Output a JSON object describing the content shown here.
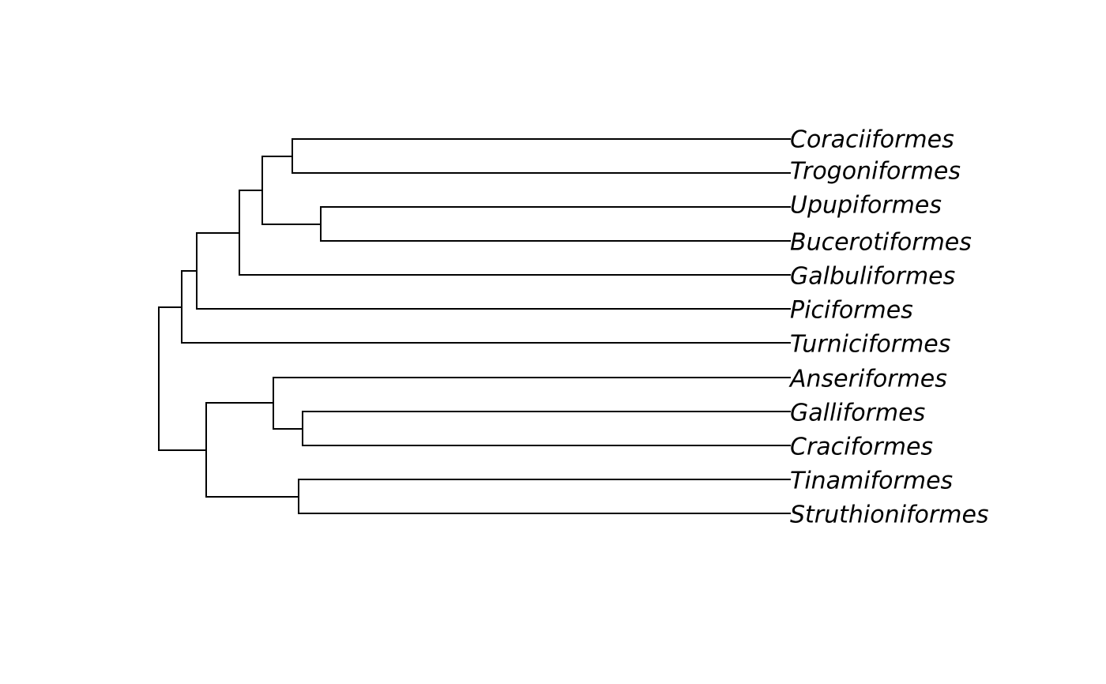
{
  "tree": {
    "tips": [
      "Coraciiformes",
      "Trogoniformes",
      "Upupiformes",
      "Bucerotiformes",
      "Galbuliformes",
      "Piciformes",
      "Turniciformes",
      "Anseriformes",
      "Galliformes",
      "Craciformes",
      "Tinamiformes",
      "Struthioniformes"
    ],
    "newick": "((((((Coraciiformes,Trogoniformes),(Upupiformes,Bucerotiformes)),Galbuliformes),Piciformes),Turniciformes),((Anseriformes,(Galliformes,Craciformes)),(Tinamiformes,Struthioniformes)));",
    "line_color": "#000000"
  }
}
